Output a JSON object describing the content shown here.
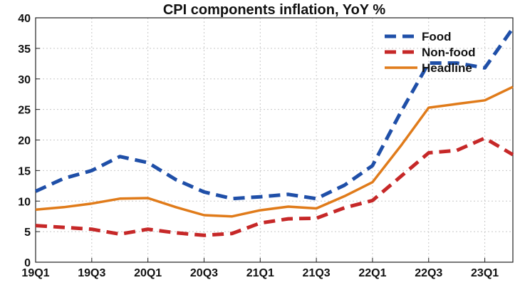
{
  "chart_data": {
    "type": "line",
    "title": "CPI components inflation, YoY %",
    "xlabel": "",
    "ylabel": "",
    "x": [
      "19Q1",
      "19Q2",
      "19Q3",
      "19Q4",
      "20Q1",
      "20Q2",
      "20Q3",
      "20Q4",
      "21Q1",
      "21Q2",
      "21Q3",
      "21Q4",
      "22Q1",
      "22Q2",
      "22Q3",
      "22Q4",
      "23Q1",
      "23Q2"
    ],
    "x_tick_labels": [
      "19Q1",
      "19Q3",
      "20Q1",
      "20Q3",
      "21Q1",
      "21Q3",
      "22Q1",
      "22Q3",
      "23Q1"
    ],
    "ylim": [
      0,
      40
    ],
    "y_ticks": [
      0,
      5,
      10,
      15,
      20,
      25,
      30,
      35,
      40
    ],
    "grid": true,
    "legend_position": "top-right",
    "series": [
      {
        "name": "Food",
        "color": "#1f4fa8",
        "style": "dashed",
        "values": [
          11.6,
          13.7,
          15.0,
          17.3,
          16.3,
          13.5,
          11.5,
          10.4,
          10.7,
          11.1,
          10.4,
          12.6,
          15.8,
          24.5,
          32.6,
          32.6,
          31.8,
          38.3
        ]
      },
      {
        "name": "Non-food",
        "color": "#c62828",
        "style": "dashed",
        "values": [
          6.0,
          5.7,
          5.4,
          4.6,
          5.4,
          4.8,
          4.4,
          4.7,
          6.4,
          7.1,
          7.2,
          8.9,
          10.1,
          14.0,
          17.9,
          18.3,
          20.3,
          17.6
        ]
      },
      {
        "name": "Headline",
        "color": "#e07b1a",
        "style": "solid",
        "values": [
          8.6,
          9.0,
          9.6,
          10.4,
          10.5,
          9.0,
          7.7,
          7.5,
          8.5,
          9.1,
          8.8,
          10.8,
          13.1,
          19.0,
          25.3,
          25.9,
          26.5,
          28.7
        ]
      }
    ]
  }
}
